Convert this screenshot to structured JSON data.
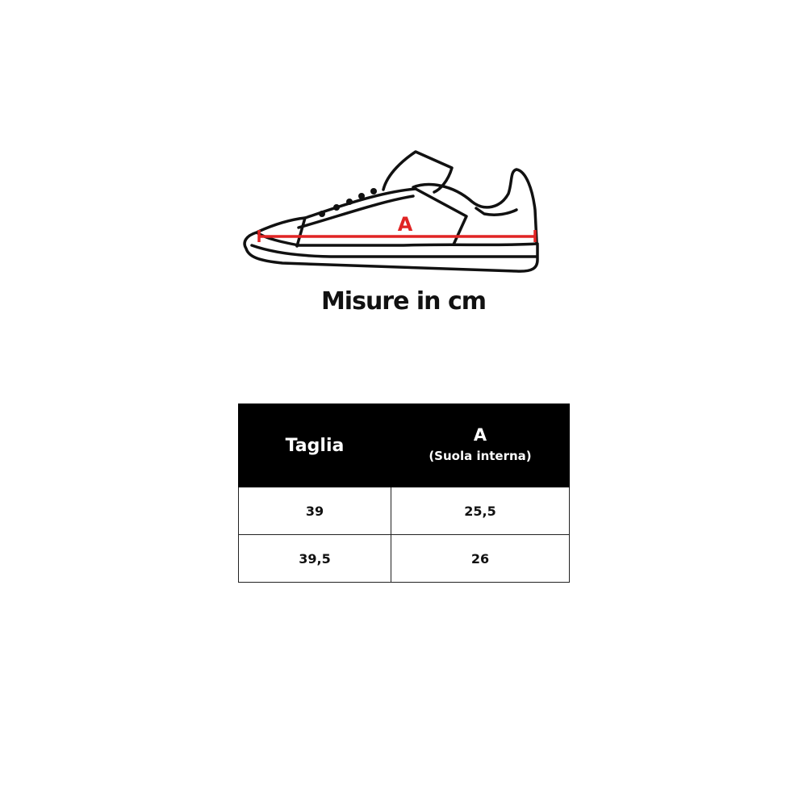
{
  "illustration": {
    "measure_label": "A",
    "measure_color": "#e02424",
    "icon": "sneaker-outline"
  },
  "title": "Misure in cm",
  "table": {
    "headers": [
      {
        "label": "Taglia"
      },
      {
        "label": "A",
        "sublabel": "(Suola interna)"
      }
    ],
    "rows": [
      [
        "39",
        "25,5"
      ],
      [
        "39,5",
        "26"
      ]
    ]
  }
}
